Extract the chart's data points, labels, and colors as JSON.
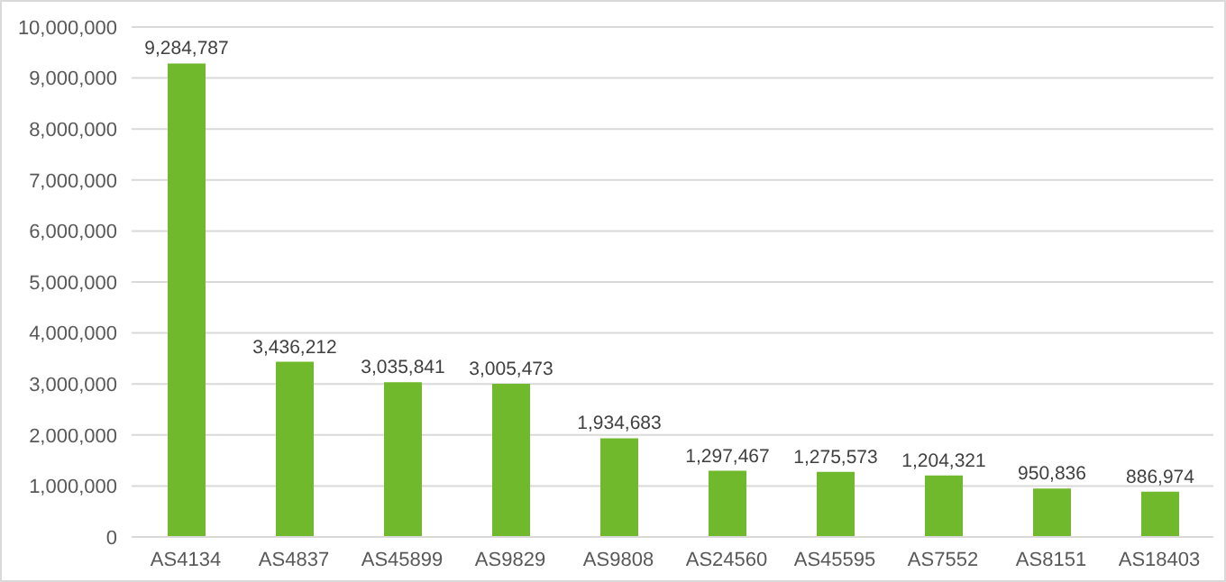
{
  "chart_data": {
    "type": "bar",
    "categories": [
      "AS4134",
      "AS4837",
      "AS45899",
      "AS9829",
      "AS9808",
      "AS24560",
      "AS45595",
      "AS7552",
      "AS8151",
      "AS18403"
    ],
    "values": [
      9284787,
      3436212,
      3035841,
      3005473,
      1934683,
      1297467,
      1275573,
      1204321,
      950836,
      886974
    ],
    "value_labels": [
      "9,284,787",
      "3,436,212",
      "3,035,841",
      "3,005,473",
      "1,934,683",
      "1,297,467",
      "1,275,573",
      "1,204,321",
      "950,836",
      "886,974"
    ],
    "color": "#70b82c",
    "ylim": [
      0,
      10000000
    ],
    "yticks": [
      0,
      {
        "value": 1000000,
        "label": "1,000,000"
      },
      {
        "value": 2000000,
        "label": "2,000,000"
      },
      {
        "value": 3000000,
        "label": "3,000,000"
      },
      {
        "value": 4000000,
        "label": "4,000,000"
      },
      {
        "value": 5000000,
        "label": "5,000,000"
      },
      {
        "value": 6000000,
        "label": "6,000,000"
      },
      {
        "value": 7000000,
        "label": "7,000,000"
      },
      {
        "value": 8000000,
        "label": "8,000,000"
      },
      {
        "value": 9000000,
        "label": "9,000,000"
      },
      {
        "value": 10000000,
        "label": "10,000,000"
      }
    ],
    "grid": "y",
    "legend": false
  }
}
